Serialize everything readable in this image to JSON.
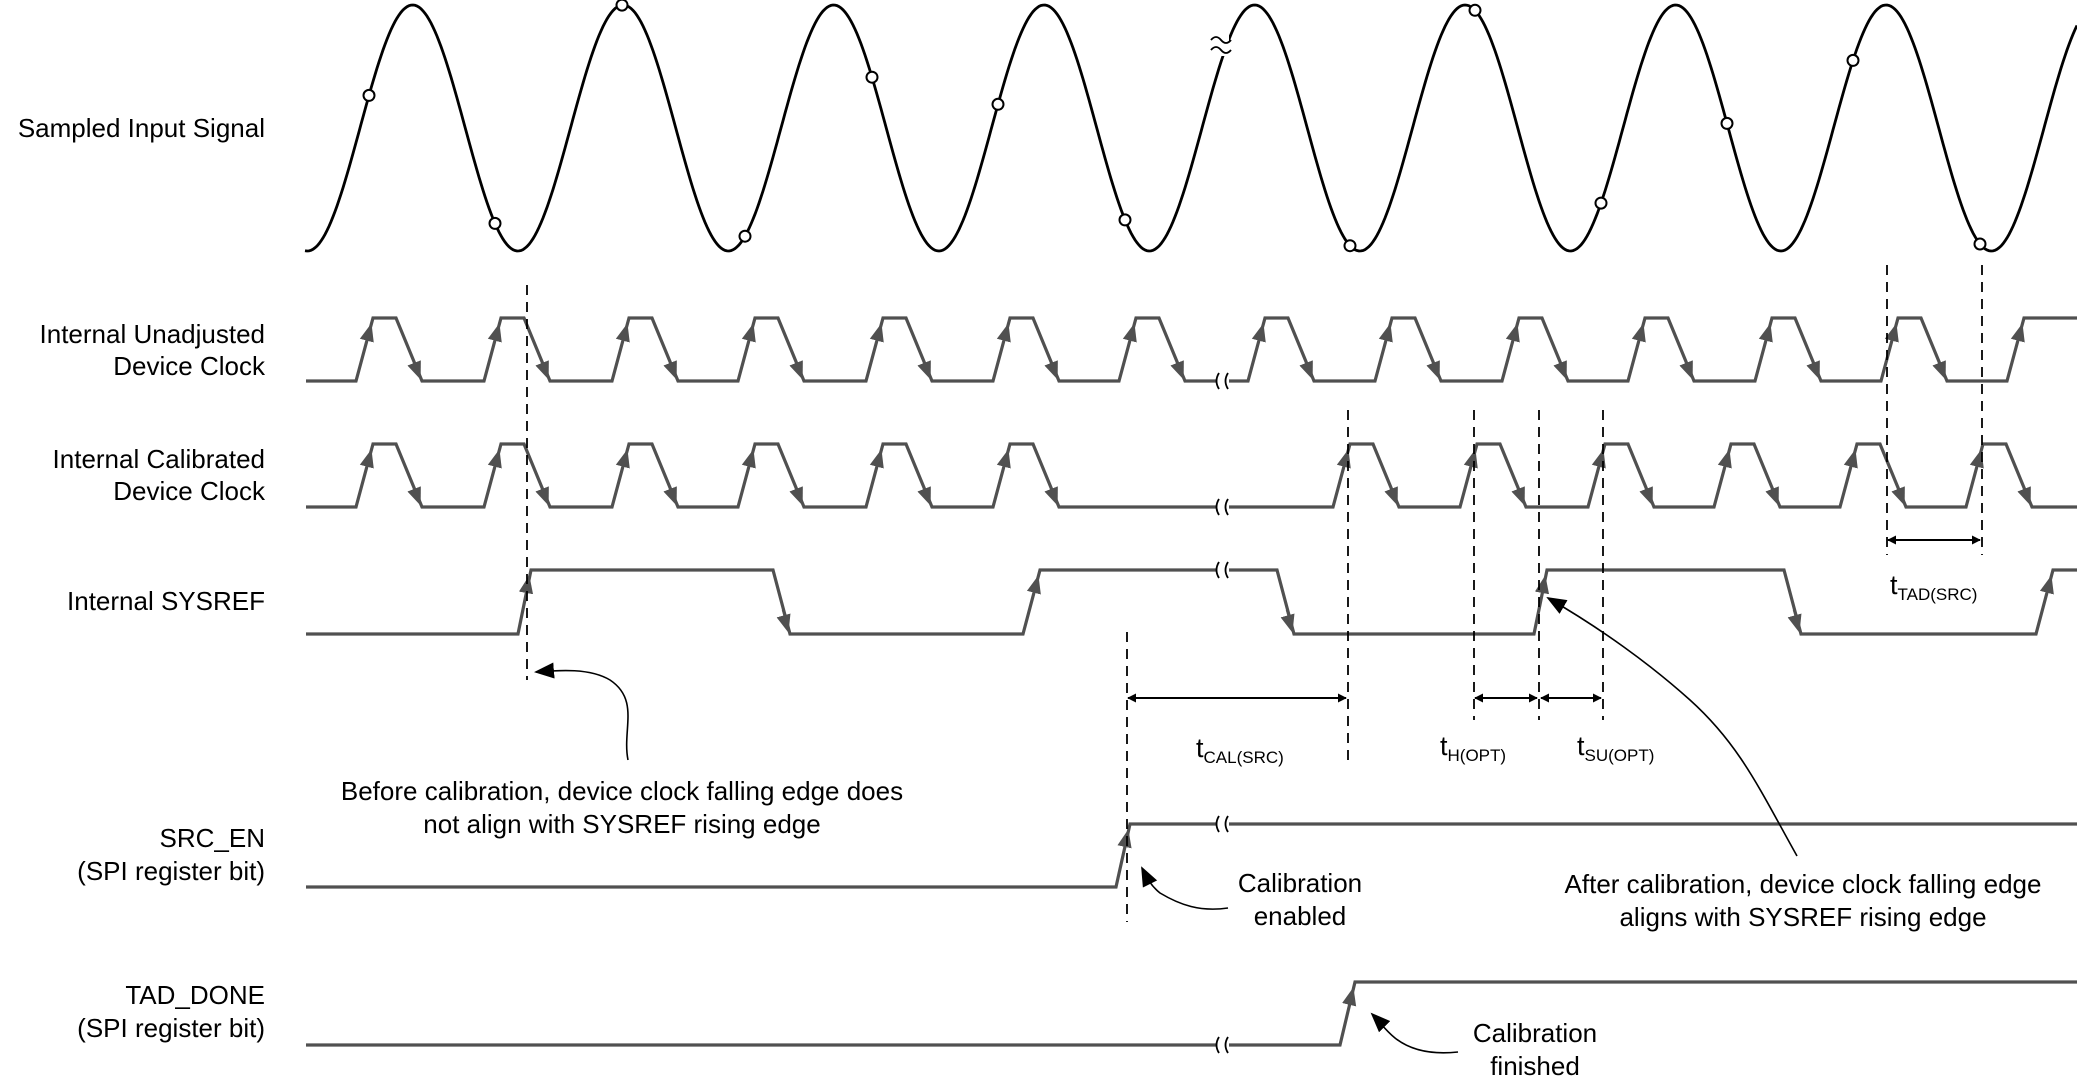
{
  "signals": [
    {
      "id": "sampled",
      "lines": [
        "Sampled Input Signal"
      ]
    },
    {
      "id": "unadjusted",
      "lines": [
        "Internal Unadjusted",
        "Device Clock"
      ]
    },
    {
      "id": "calibrated",
      "lines": [
        "Internal Calibrated",
        "Device Clock"
      ]
    },
    {
      "id": "sysref",
      "lines": [
        "Internal SYSREF"
      ]
    },
    {
      "id": "src_en",
      "lines": [
        "SRC_EN",
        "(SPI register bit)"
      ]
    },
    {
      "id": "tad_done",
      "lines": [
        "TAD_DONE",
        "(SPI register bit)"
      ]
    }
  ],
  "timing_labels": {
    "tcal": {
      "main": "t",
      "sub": "CAL(SRC)"
    },
    "th": {
      "main": "t",
      "sub": "H(OPT)"
    },
    "tsu": {
      "main": "t",
      "sub": "SU(OPT)"
    },
    "ttad": {
      "main": "t",
      "sub": "TAD(SRC)"
    }
  },
  "annotations": {
    "before": [
      "Before calibration, device clock falling edge does",
      "not align with SYSREF rising edge"
    ],
    "cal_enabled": [
      "Calibration",
      "enabled"
    ],
    "after": [
      "After calibration, device clock falling edge",
      "aligns with SYSREF rising edge"
    ],
    "cal_finished": [
      "Calibration",
      "finished"
    ]
  },
  "colors": {
    "trace": "#505050",
    "ink": "#000000",
    "background": "#ffffff"
  }
}
